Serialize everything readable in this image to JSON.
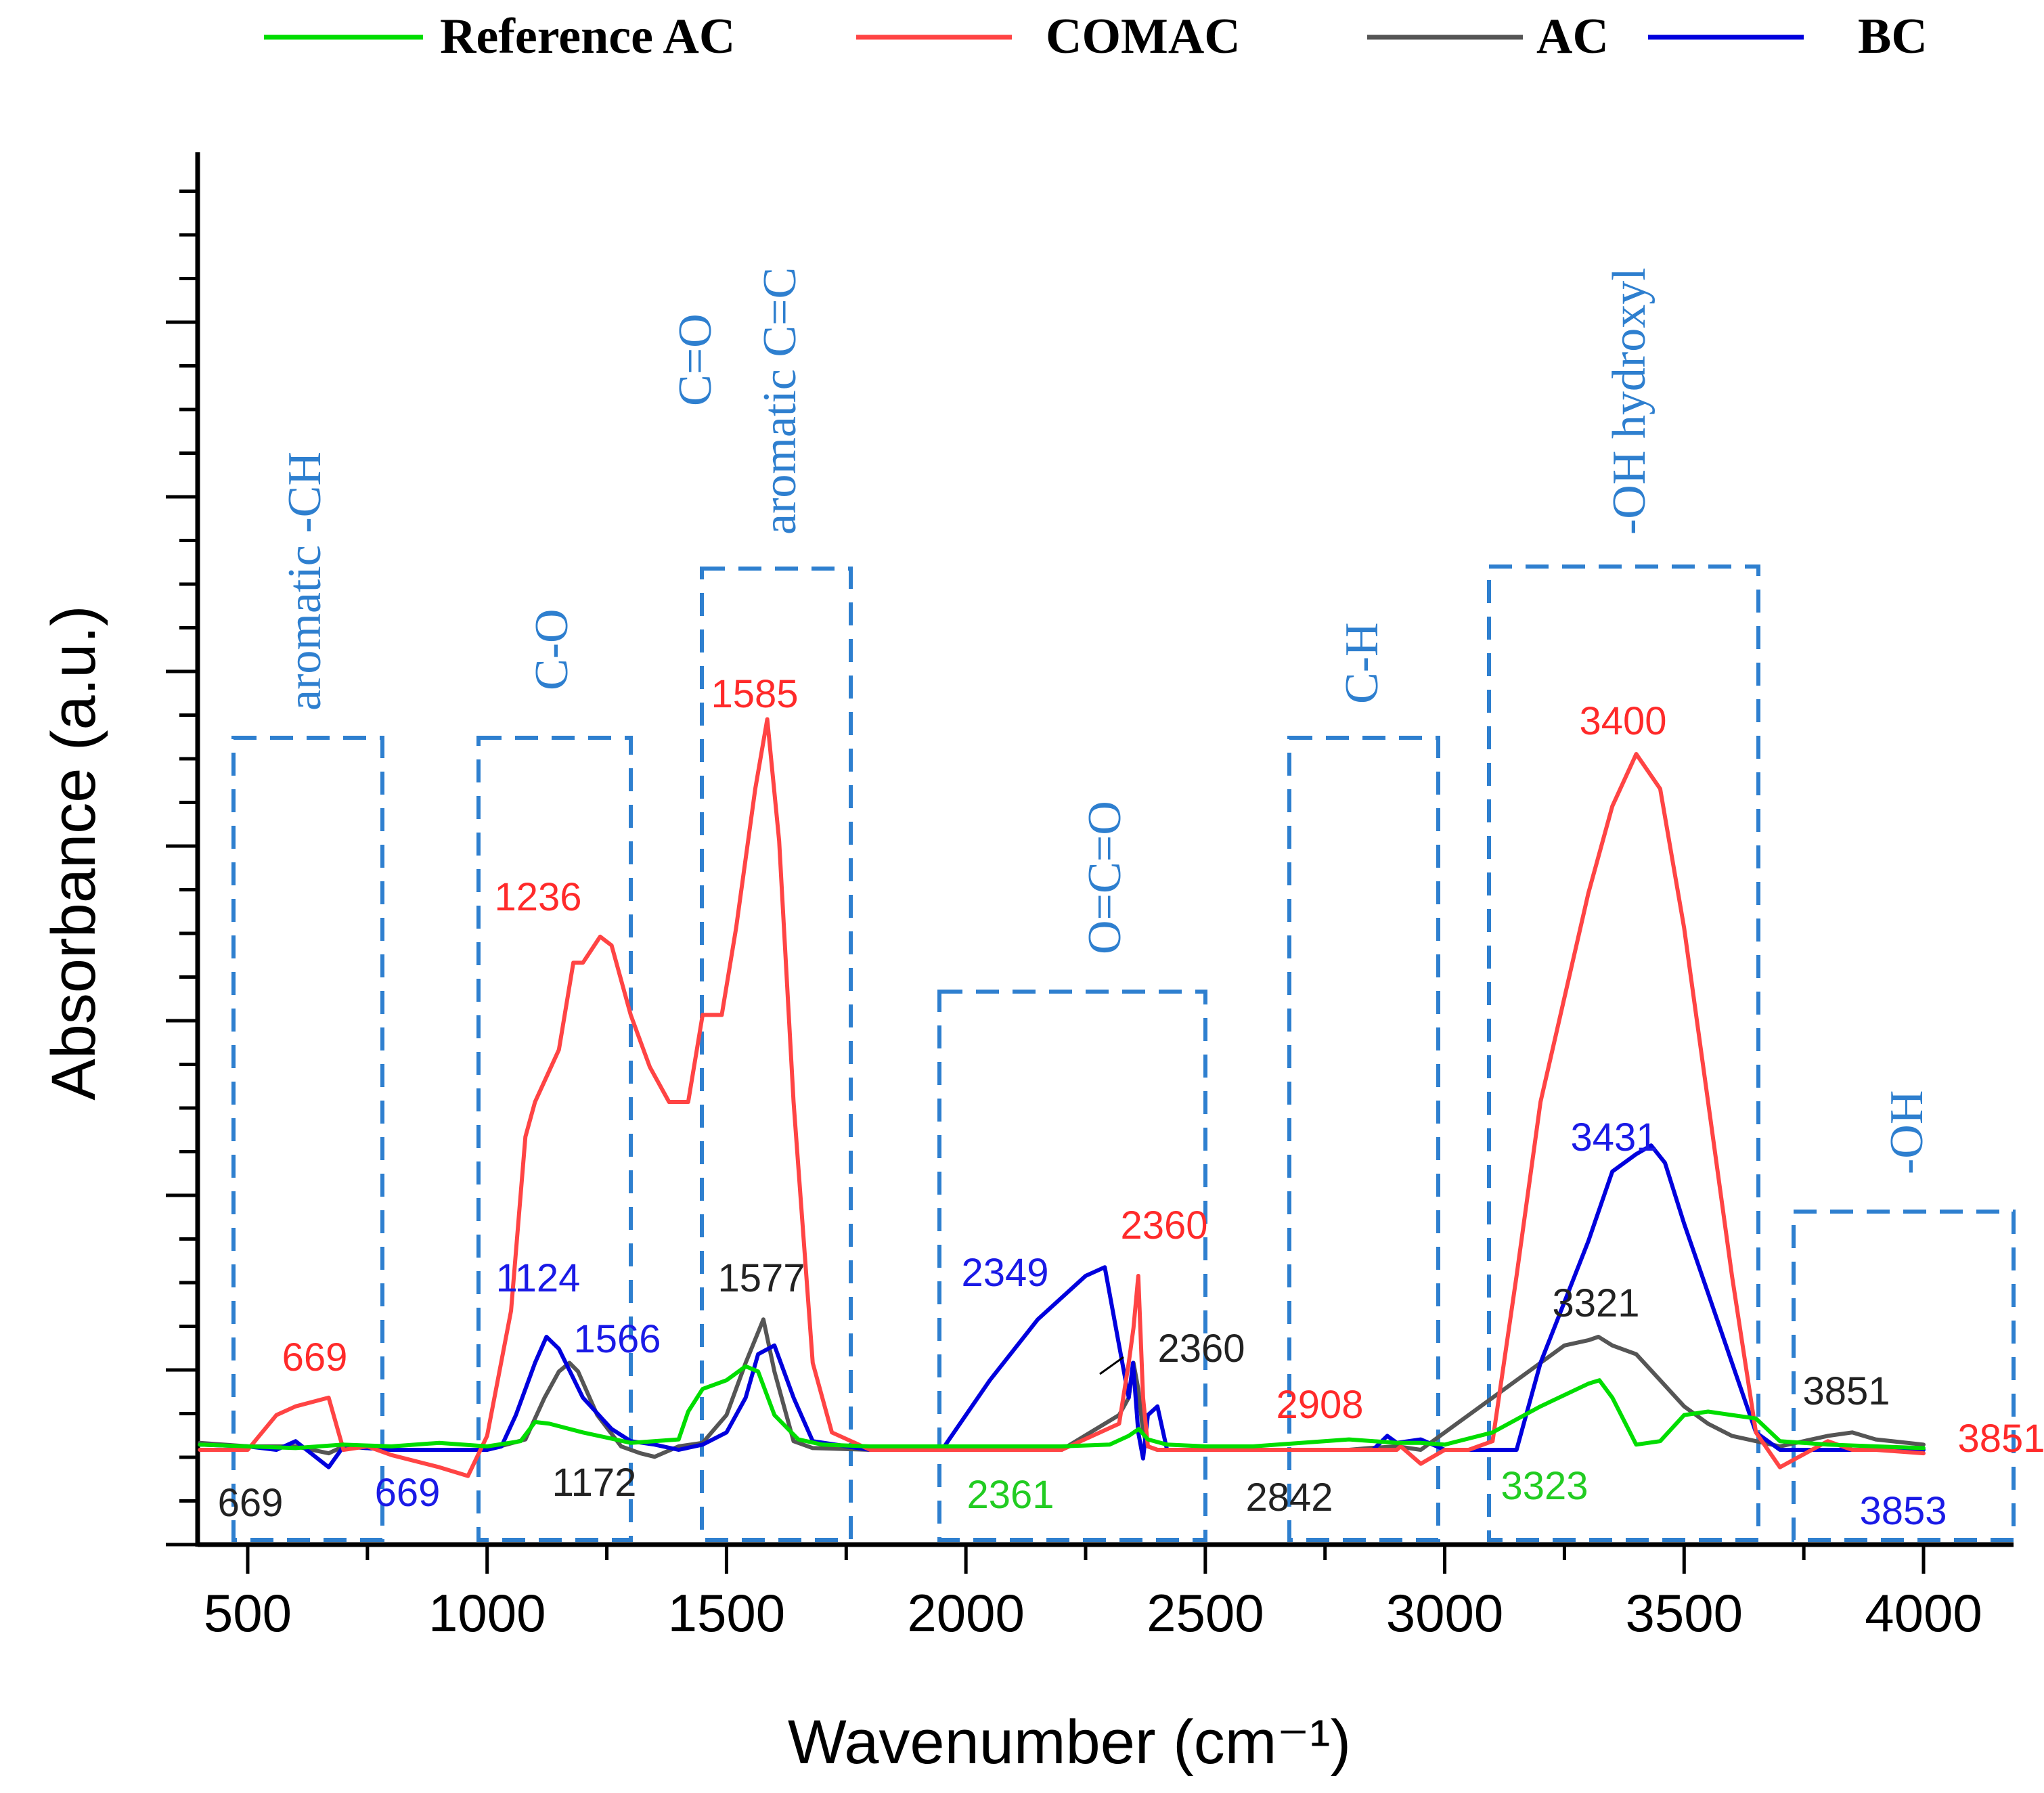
{
  "chart_data": {
    "type": "line",
    "title": "",
    "xlabel": "Wavenumber (cm⁻¹)",
    "ylabel": "Absorbance (a.u.)",
    "xlim": [
      400,
      4000
    ],
    "ylim": [
      -0.05,
      0.75
    ],
    "xticks": [
      "500",
      "1000",
      "1500",
      "2000",
      "2500",
      "3000",
      "3500",
      "4000"
    ],
    "legend": {
      "placement": "top",
      "entries": [
        {
          "label": "Reference AC",
          "color": "#00dd00"
        },
        {
          "label": "COMAC",
          "color": "#ff4444"
        },
        {
          "label": "AC",
          "color": "#555555"
        },
        {
          "label": "BC",
          "color": "#0000dd"
        }
      ]
    },
    "series": [
      {
        "name": "Reference AC",
        "color": "#00dd00",
        "x": [
          400,
          500,
          600,
          700,
          800,
          900,
          1000,
          1070,
          1100,
          1130,
          1200,
          1300,
          1400,
          1420,
          1450,
          1500,
          1540,
          1566,
          1600,
          1650,
          1700,
          1800,
          2000,
          2200,
          2300,
          2340,
          2361,
          2380,
          2420,
          2500,
          2600,
          2700,
          2800,
          2900,
          2950,
          3000,
          3100,
          3200,
          3300,
          3323,
          3350,
          3400,
          3450,
          3500,
          3550,
          3600,
          3650,
          3700,
          3800,
          3900,
          4000
        ],
        "y": [
          0.003,
          0.002,
          0.001,
          0.003,
          0.002,
          0.004,
          0.002,
          0.005,
          0.016,
          0.015,
          0.01,
          0.004,
          0.006,
          0.022,
          0.035,
          0.04,
          0.048,
          0.045,
          0.02,
          0.006,
          0.003,
          0.002,
          0.002,
          0.002,
          0.003,
          0.008,
          0.012,
          0.006,
          0.003,
          0.002,
          0.002,
          0.004,
          0.006,
          0.004,
          0.004,
          0.003,
          0.01,
          0.025,
          0.038,
          0.04,
          0.03,
          0.003,
          0.005,
          0.02,
          0.022,
          0.02,
          0.018,
          0.005,
          0.003,
          0.002,
          0.001
        ]
      },
      {
        "name": "COMAC",
        "color": "#ff4444",
        "x": [
          400,
          500,
          560,
          600,
          669,
          700,
          750,
          800,
          900,
          960,
          1000,
          1050,
          1080,
          1100,
          1150,
          1180,
          1200,
          1236,
          1260,
          1300,
          1340,
          1380,
          1420,
          1450,
          1490,
          1520,
          1560,
          1585,
          1610,
          1640,
          1680,
          1720,
          1800,
          2000,
          2200,
          2320,
          2340,
          2350,
          2360,
          2370,
          2380,
          2400,
          2500,
          2600,
          2700,
          2800,
          2900,
          2908,
          2950,
          3000,
          3050,
          3100,
          3150,
          3200,
          3300,
          3350,
          3400,
          3450,
          3500,
          3550,
          3600,
          3650,
          3700,
          3800,
          3851,
          3900,
          4000
        ],
        "y": [
          0.0,
          0.0,
          0.02,
          0.025,
          0.03,
          0.0,
          0.002,
          -0.003,
          -0.01,
          -0.015,
          0.008,
          0.08,
          0.18,
          0.2,
          0.23,
          0.28,
          0.28,
          0.295,
          0.29,
          0.25,
          0.22,
          0.2,
          0.2,
          0.25,
          0.25,
          0.3,
          0.38,
          0.42,
          0.35,
          0.2,
          0.05,
          0.01,
          0.0,
          0.0,
          0.0,
          0.015,
          0.05,
          0.07,
          0.1,
          0.03,
          0.002,
          0.0,
          0.0,
          0.0,
          0.0,
          0.0,
          0.0,
          0.002,
          -0.008,
          0.0,
          0.0,
          0.005,
          0.1,
          0.2,
          0.32,
          0.37,
          0.4,
          0.38,
          0.3,
          0.2,
          0.1,
          0.01,
          -0.01,
          0.005,
          0.0,
          0.0,
          -0.002
        ]
      },
      {
        "name": "AC",
        "color": "#555555",
        "x": [
          400,
          500,
          600,
          669,
          700,
          800,
          900,
          1000,
          1080,
          1120,
          1150,
          1172,
          1190,
          1230,
          1280,
          1320,
          1350,
          1400,
          1450,
          1500,
          1540,
          1577,
          1600,
          1640,
          1680,
          1800,
          2000,
          2200,
          2320,
          2340,
          2350,
          2360,
          2370,
          2380,
          2400,
          2500,
          2600,
          2700,
          2800,
          2842,
          2900,
          2950,
          3000,
          3100,
          3200,
          3250,
          3300,
          3321,
          3350,
          3400,
          3450,
          3500,
          3550,
          3600,
          3650,
          3700,
          3800,
          3851,
          3900,
          4000
        ],
        "y": [
          0.004,
          0.002,
          0.002,
          -0.002,
          0.002,
          0.0,
          0.0,
          0.0,
          0.006,
          0.03,
          0.045,
          0.05,
          0.045,
          0.02,
          0.002,
          -0.002,
          -0.004,
          0.002,
          0.004,
          0.02,
          0.05,
          0.075,
          0.045,
          0.005,
          0.001,
          0.0,
          0.0,
          0.0,
          0.02,
          0.03,
          0.05,
          0.035,
          0.01,
          0.002,
          0.0,
          0.0,
          0.0,
          0.0,
          0.0,
          0.001,
          0.002,
          0.0,
          0.01,
          0.03,
          0.05,
          0.06,
          0.063,
          0.065,
          0.06,
          0.055,
          0.04,
          0.025,
          0.015,
          0.008,
          0.005,
          0.002,
          0.008,
          0.01,
          0.006,
          0.003
        ]
      },
      {
        "name": "BC",
        "color": "#0000dd",
        "x": [
          400,
          500,
          560,
          600,
          669,
          700,
          800,
          900,
          1000,
          1030,
          1060,
          1100,
          1124,
          1150,
          1200,
          1260,
          1300,
          1350,
          1400,
          1450,
          1500,
          1540,
          1566,
          1600,
          1640,
          1680,
          1800,
          1950,
          2050,
          2150,
          2250,
          2290,
          2320,
          2340,
          2349,
          2360,
          2370,
          2380,
          2400,
          2420,
          2500,
          2700,
          2850,
          2880,
          2900,
          2950,
          3000,
          3100,
          3150,
          3200,
          3300,
          3350,
          3400,
          3431,
          3460,
          3500,
          3550,
          3600,
          3650,
          3700,
          3800,
          3853,
          3900,
          4000
        ],
        "y": [
          0.003,
          0.002,
          0.0,
          0.005,
          -0.01,
          0.002,
          0.0,
          0.0,
          0.0,
          0.002,
          0.02,
          0.05,
          0.065,
          0.058,
          0.03,
          0.012,
          0.005,
          0.003,
          0.0,
          0.003,
          0.01,
          0.03,
          0.055,
          0.06,
          0.03,
          0.005,
          0.0,
          0.0,
          0.04,
          0.075,
          0.1,
          0.105,
          0.06,
          0.03,
          0.05,
          0.01,
          -0.005,
          0.02,
          0.025,
          0.0,
          0.0,
          0.0,
          0.0,
          0.008,
          0.004,
          0.006,
          0.0,
          0.0,
          0.0,
          0.05,
          0.12,
          0.16,
          0.17,
          0.175,
          0.165,
          0.13,
          0.09,
          0.05,
          0.01,
          0.0,
          0.0,
          0.0,
          0.0,
          0.0
        ]
      }
    ],
    "region_labels": [
      {
        "label": "aromatic -CH",
        "x_range": [
          480,
          790
        ]
      },
      {
        "label": "C-O",
        "x_range": [
          985,
          1300
        ]
      },
      {
        "label": "C=O",
        "x_range": [
          1450,
          1760
        ]
      },
      {
        "label": "aromatic C=C",
        "x_range": [
          1450,
          1760
        ]
      },
      {
        "label": "O=C=O",
        "x_range": [
          1945,
          2500
        ]
      },
      {
        "label": "C-H",
        "x_range": [
          2680,
          2990
        ]
      },
      {
        "label": "-OH hydroxyl",
        "x_range": [
          3090,
          3655
        ]
      },
      {
        "label": "-OH",
        "x_range": [
          3730,
          4190
        ]
      }
    ],
    "annotations": [
      {
        "text": "1585",
        "series": "COMAC",
        "x": 1585
      },
      {
        "text": "1236",
        "series": "COMAC",
        "x": 1236
      },
      {
        "text": "669",
        "series": "COMAC",
        "x": 669
      },
      {
        "text": "2360",
        "series": "COMAC",
        "x": 2360
      },
      {
        "text": "2908",
        "series": "COMAC",
        "x": 2908
      },
      {
        "text": "3400",
        "series": "COMAC",
        "x": 3400
      },
      {
        "text": "3851",
        "series": "COMAC",
        "x": 3851
      },
      {
        "text": "1124",
        "series": "BC",
        "x": 1124
      },
      {
        "text": "1566",
        "series": "BC",
        "x": 1566
      },
      {
        "text": "669",
        "series": "BC",
        "x": 669
      },
      {
        "text": "2349",
        "series": "BC",
        "x": 2349
      },
      {
        "text": "3431",
        "series": "BC",
        "x": 3431
      },
      {
        "text": "3853",
        "series": "BC",
        "x": 3853
      },
      {
        "text": "669",
        "series": "AC",
        "x": 669
      },
      {
        "text": "1172",
        "series": "AC",
        "x": 1172
      },
      {
        "text": "1577",
        "series": "AC",
        "x": 1577
      },
      {
        "text": "2360",
        "series": "AC",
        "x": 2360
      },
      {
        "text": "2842",
        "series": "AC",
        "x": 2842
      },
      {
        "text": "3321",
        "series": "AC",
        "x": 3321
      },
      {
        "text": "3851",
        "series": "AC",
        "x": 3851
      },
      {
        "text": "2361",
        "series": "Reference AC",
        "x": 2361
      },
      {
        "text": "3323",
        "series": "Reference AC",
        "x": 3323
      }
    ]
  }
}
